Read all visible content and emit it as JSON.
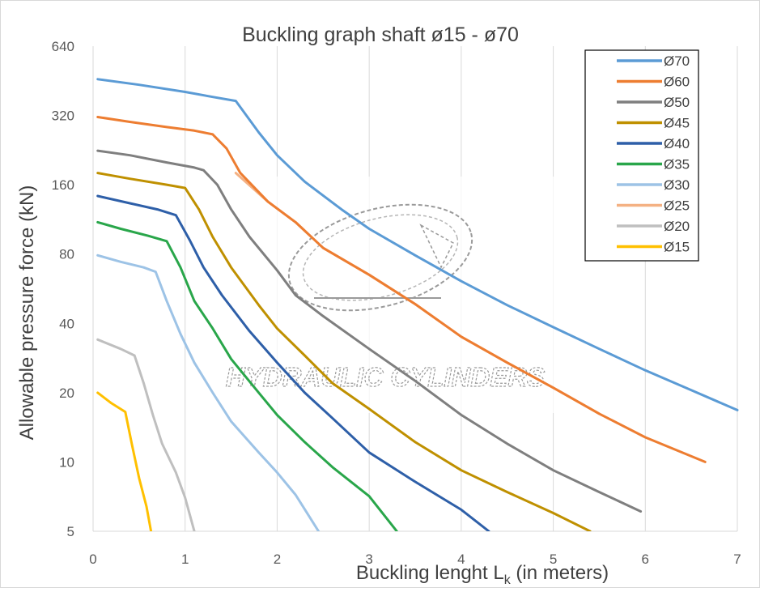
{
  "chart_data": {
    "type": "line",
    "title": "Buckling graph shaft ø15 - ø70",
    "xlabel": "Buckling lenght L",
    "xlabel_subscript": "k",
    "xlabel_suffix": " (in meters)",
    "ylabel": "Allowable pressure force (kN)",
    "x_scale": "linear",
    "y_scale": "log2",
    "xlim": [
      0,
      7
    ],
    "ylim": [
      5,
      640
    ],
    "x_ticks": [
      "0",
      "1",
      "2",
      "3",
      "4",
      "5",
      "6",
      "7"
    ],
    "y_ticks": [
      "5",
      "10",
      "20",
      "40",
      "80",
      "160",
      "320",
      "640"
    ],
    "grid": "vertical",
    "legend_position": "top-right",
    "watermark_text": "HYDRAULIC CYLINDERS",
    "series": [
      {
        "name": "Ø70",
        "color": "#5b9bd5",
        "points": [
          [
            0.05,
            460
          ],
          [
            0.5,
            435
          ],
          [
            1.0,
            405
          ],
          [
            1.3,
            385
          ],
          [
            1.55,
            370
          ],
          [
            1.8,
            270
          ],
          [
            2.0,
            215
          ],
          [
            2.3,
            165
          ],
          [
            2.7,
            125
          ],
          [
            3.0,
            103
          ],
          [
            3.5,
            79
          ],
          [
            4.0,
            61
          ],
          [
            4.5,
            48
          ],
          [
            5.0,
            38.5
          ],
          [
            5.5,
            31
          ],
          [
            6.0,
            25
          ],
          [
            6.5,
            20.5
          ],
          [
            7.0,
            16.8
          ]
        ]
      },
      {
        "name": "Ø60",
        "color": "#ed7d31",
        "points": [
          [
            0.05,
            315
          ],
          [
            0.4,
            300
          ],
          [
            0.8,
            285
          ],
          [
            1.1,
            275
          ],
          [
            1.3,
            265
          ],
          [
            1.45,
            230
          ],
          [
            1.6,
            180
          ],
          [
            1.9,
            135
          ],
          [
            2.2,
            110
          ],
          [
            2.5,
            85
          ],
          [
            3.0,
            65
          ],
          [
            3.5,
            48.5
          ],
          [
            4.0,
            35
          ],
          [
            4.5,
            27
          ],
          [
            5.0,
            21
          ],
          [
            5.5,
            16.2
          ],
          [
            6.0,
            12.8
          ],
          [
            6.65,
            10
          ]
        ]
      },
      {
        "name": "Ø50",
        "color": "#7f7f7f",
        "points": [
          [
            0.05,
            225
          ],
          [
            0.4,
            215
          ],
          [
            0.8,
            200
          ],
          [
            1.1,
            190
          ],
          [
            1.2,
            185
          ],
          [
            1.35,
            160
          ],
          [
            1.5,
            125
          ],
          [
            1.7,
            95
          ],
          [
            2.0,
            68
          ],
          [
            2.2,
            53
          ],
          [
            2.5,
            43
          ],
          [
            3.0,
            31
          ],
          [
            3.5,
            22.5
          ],
          [
            4.0,
            16
          ],
          [
            4.5,
            12
          ],
          [
            5.0,
            9.2
          ],
          [
            5.5,
            7.4
          ],
          [
            5.95,
            6.1
          ]
        ]
      },
      {
        "name": "Ø45",
        "color": "#bf9000",
        "points": [
          [
            0.05,
            180
          ],
          [
            0.4,
            170
          ],
          [
            0.8,
            160
          ],
          [
            1.0,
            155
          ],
          [
            1.15,
            125
          ],
          [
            1.3,
            95
          ],
          [
            1.5,
            70
          ],
          [
            1.8,
            48
          ],
          [
            2.0,
            38
          ],
          [
            2.3,
            29
          ],
          [
            2.6,
            22
          ],
          [
            3.0,
            17
          ],
          [
            3.5,
            12.2
          ],
          [
            4.0,
            9.2
          ],
          [
            4.5,
            7.4
          ],
          [
            5.0,
            6
          ],
          [
            5.4,
            5
          ]
        ]
      },
      {
        "name": "Ø40",
        "color": "#2e5fa8",
        "points": [
          [
            0.05,
            143
          ],
          [
            0.4,
            133
          ],
          [
            0.7,
            125
          ],
          [
            0.9,
            118
          ],
          [
            1.05,
            92
          ],
          [
            1.2,
            70
          ],
          [
            1.4,
            53
          ],
          [
            1.7,
            37
          ],
          [
            2.0,
            27
          ],
          [
            2.3,
            20
          ],
          [
            2.6,
            15.5
          ],
          [
            3.0,
            11
          ],
          [
            3.5,
            8.2
          ],
          [
            4.0,
            6.2
          ],
          [
            4.3,
            5
          ]
        ]
      },
      {
        "name": "Ø35",
        "color": "#29a64a",
        "points": [
          [
            0.05,
            110
          ],
          [
            0.3,
            103
          ],
          [
            0.6,
            96
          ],
          [
            0.8,
            91
          ],
          [
            0.95,
            70
          ],
          [
            1.1,
            50
          ],
          [
            1.3,
            38
          ],
          [
            1.5,
            28
          ],
          [
            1.8,
            20
          ],
          [
            2.0,
            16
          ],
          [
            2.3,
            12.2
          ],
          [
            2.6,
            9.5
          ],
          [
            3.0,
            7.1
          ],
          [
            3.3,
            5
          ]
        ]
      },
      {
        "name": "Ø30",
        "color": "#9dc3e6",
        "points": [
          [
            0.05,
            79
          ],
          [
            0.3,
            74
          ],
          [
            0.55,
            70
          ],
          [
            0.68,
            67
          ],
          [
            0.8,
            50
          ],
          [
            0.95,
            36
          ],
          [
            1.1,
            27
          ],
          [
            1.3,
            20
          ],
          [
            1.5,
            15
          ],
          [
            1.8,
            11
          ],
          [
            2.0,
            9
          ],
          [
            2.2,
            7.2
          ],
          [
            2.45,
            5
          ]
        ]
      },
      {
        "name": "Ø25",
        "color": "#f4b183",
        "points": [
          [
            1.55,
            180
          ],
          [
            1.9,
            135
          ],
          [
            2.2,
            110
          ],
          [
            2.5,
            85
          ],
          [
            3.0,
            65
          ],
          [
            3.5,
            48.5
          ],
          [
            4.0,
            35
          ],
          [
            4.5,
            27
          ],
          [
            5.0,
            21
          ],
          [
            5.5,
            16.2
          ]
        ]
      },
      {
        "name": "Ø20",
        "color": "#bfbfbf",
        "points": [
          [
            0.05,
            34
          ],
          [
            0.3,
            31
          ],
          [
            0.45,
            29
          ],
          [
            0.55,
            22
          ],
          [
            0.65,
            16
          ],
          [
            0.75,
            12
          ],
          [
            0.9,
            9
          ],
          [
            1.0,
            7
          ],
          [
            1.1,
            5
          ]
        ]
      },
      {
        "name": "Ø15",
        "color": "#ffc000",
        "points": [
          [
            0.05,
            20
          ],
          [
            0.2,
            18
          ],
          [
            0.35,
            16.5
          ],
          [
            0.42,
            12
          ],
          [
            0.5,
            8.5
          ],
          [
            0.58,
            6.4
          ],
          [
            0.63,
            5
          ]
        ]
      }
    ]
  }
}
